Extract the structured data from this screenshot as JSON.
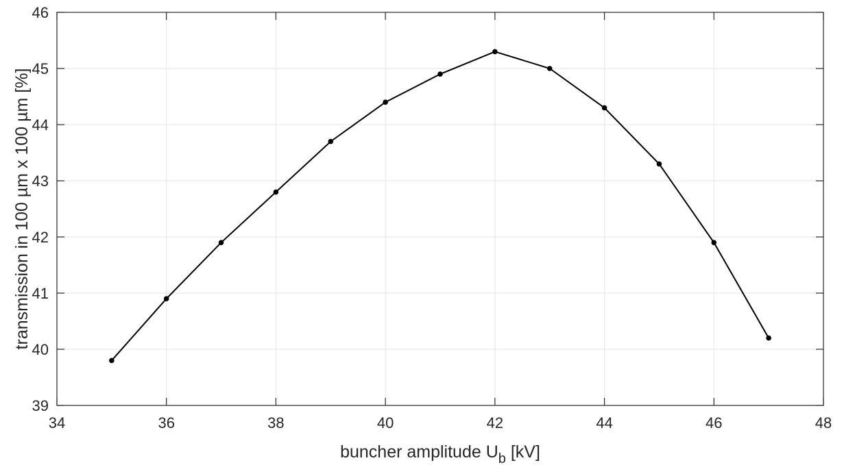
{
  "chart_data": {
    "type": "line",
    "title": "",
    "xlabel_main": "buncher amplitude U",
    "xlabel_sub": "b",
    "xlabel_unit": " [kV]",
    "ylabel": "transmission in 100 µm x 100 µm [%]",
    "xlim": [
      34,
      48
    ],
    "ylim": [
      39,
      46
    ],
    "xticks": [
      34,
      36,
      38,
      40,
      42,
      44,
      46,
      48
    ],
    "yticks": [
      39,
      40,
      41,
      42,
      43,
      44,
      45,
      46
    ],
    "grid": true,
    "series": [
      {
        "color": "#000000",
        "marker": "dot",
        "x": [
          35,
          36,
          37,
          38,
          39,
          40,
          41,
          42,
          43,
          44,
          45,
          46,
          47
        ],
        "y": [
          39.8,
          40.9,
          41.9,
          42.8,
          43.7,
          44.4,
          44.9,
          45.3,
          45.0,
          44.3,
          43.3,
          41.9,
          40.2
        ]
      }
    ]
  }
}
